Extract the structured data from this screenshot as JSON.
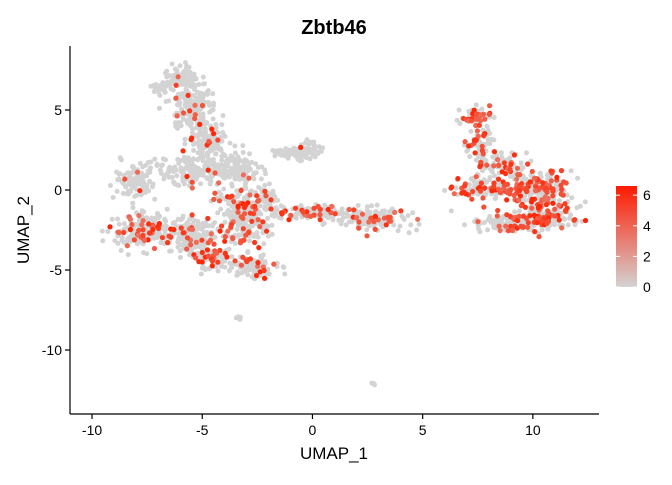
{
  "chart_data": {
    "type": "scatter",
    "title": "Zbtb46",
    "xlabel": "UMAP_1",
    "ylabel": "UMAP_2",
    "xlim": [
      -11,
      13
    ],
    "ylim": [
      -14,
      9
    ],
    "xticks": [
      -10,
      -5,
      0,
      5,
      10
    ],
    "yticks": [
      -10,
      -5,
      0,
      5
    ],
    "grid": false,
    "legend": {
      "placement": "right",
      "type": "colorbar",
      "min": 0,
      "max": 6.6,
      "ticks": [
        0,
        2,
        4,
        6
      ],
      "low_color": "#d3d3d3",
      "high_color": "#ff1a00"
    },
    "colors": {
      "low": "#d3d3d3",
      "high": "#ff2200"
    },
    "clusters": [
      {
        "cx": -5.9,
        "cy": 7.0,
        "rx": 0.7,
        "ry": 0.6,
        "n": 90,
        "expr_frac": 0.03
      },
      {
        "cx": -5.5,
        "cy": 5.2,
        "rx": 0.9,
        "ry": 1.3,
        "n": 170,
        "expr_frac": 0.05
      },
      {
        "cx": -6.9,
        "cy": 6.3,
        "rx": 0.5,
        "ry": 0.3,
        "n": 20,
        "expr_frac": 0.0
      },
      {
        "cx": -4.8,
        "cy": 3.0,
        "rx": 0.8,
        "ry": 1.1,
        "n": 120,
        "expr_frac": 0.04
      },
      {
        "cx": -5.3,
        "cy": 1.2,
        "rx": 2.2,
        "ry": 0.8,
        "n": 200,
        "expr_frac": 0.04
      },
      {
        "cx": -8.0,
        "cy": 0.5,
        "rx": 0.8,
        "ry": 1.0,
        "n": 90,
        "expr_frac": 0.02
      },
      {
        "cx": -3.2,
        "cy": 1.5,
        "rx": 0.9,
        "ry": 0.9,
        "n": 80,
        "expr_frac": 0.06
      },
      {
        "cx": -7.6,
        "cy": -2.6,
        "rx": 1.3,
        "ry": 0.9,
        "n": 200,
        "expr_frac": 0.22
      },
      {
        "cx": -5.5,
        "cy": -2.8,
        "rx": 1.0,
        "ry": 1.0,
        "n": 160,
        "expr_frac": 0.15
      },
      {
        "cx": -4.5,
        "cy": -4.3,
        "rx": 0.8,
        "ry": 0.7,
        "n": 90,
        "expr_frac": 0.18
      },
      {
        "cx": -3.0,
        "cy": -1.6,
        "rx": 1.2,
        "ry": 1.6,
        "n": 260,
        "expr_frac": 0.22
      },
      {
        "cx": -2.6,
        "cy": -4.8,
        "rx": 0.9,
        "ry": 0.7,
        "n": 100,
        "expr_frac": 0.12
      },
      {
        "cx": -2.0,
        "cy": -0.5,
        "rx": 0.4,
        "ry": 0.5,
        "n": 30,
        "expr_frac": 0.1
      },
      {
        "cx": -1.2,
        "cy": 2.3,
        "rx": 0.5,
        "ry": 0.3,
        "n": 25,
        "expr_frac": 0.0
      },
      {
        "cx": -0.5,
        "cy": 2.3,
        "rx": 0.4,
        "ry": 0.5,
        "n": 30,
        "expr_frac": 0.05
      },
      {
        "cx": -0.1,
        "cy": 2.5,
        "rx": 0.35,
        "ry": 0.4,
        "n": 30,
        "expr_frac": 0.05
      },
      {
        "cx": 0.0,
        "cy": -1.4,
        "rx": 1.3,
        "ry": 0.35,
        "n": 110,
        "expr_frac": 0.2
      },
      {
        "cx": 2.6,
        "cy": -1.8,
        "rx": 1.4,
        "ry": 0.7,
        "n": 150,
        "expr_frac": 0.18
      },
      {
        "cx": 7.4,
        "cy": 4.6,
        "rx": 0.6,
        "ry": 0.5,
        "n": 60,
        "expr_frac": 0.35
      },
      {
        "cx": 7.6,
        "cy": 2.8,
        "rx": 0.6,
        "ry": 1.0,
        "n": 70,
        "expr_frac": 0.3
      },
      {
        "cx": 8.7,
        "cy": 1.6,
        "rx": 0.9,
        "ry": 0.6,
        "n": 70,
        "expr_frac": 0.32
      },
      {
        "cx": 7.8,
        "cy": 0.2,
        "rx": 1.4,
        "ry": 0.6,
        "n": 120,
        "expr_frac": 0.3
      },
      {
        "cx": 10.3,
        "cy": 0.0,
        "rx": 1.3,
        "ry": 1.0,
        "n": 220,
        "expr_frac": 0.4
      },
      {
        "cx": 10.5,
        "cy": -1.8,
        "rx": 1.2,
        "ry": 0.7,
        "n": 140,
        "expr_frac": 0.3
      },
      {
        "cx": 8.7,
        "cy": -2.0,
        "rx": 1.5,
        "ry": 0.6,
        "n": 100,
        "expr_frac": 0.2
      },
      {
        "cx": -3.3,
        "cy": -8.0,
        "rx": 0.15,
        "ry": 0.12,
        "n": 6,
        "expr_frac": 0.0
      },
      {
        "cx": 2.8,
        "cy": -12.1,
        "rx": 0.1,
        "ry": 0.08,
        "n": 4,
        "expr_frac": 0.0
      }
    ]
  }
}
